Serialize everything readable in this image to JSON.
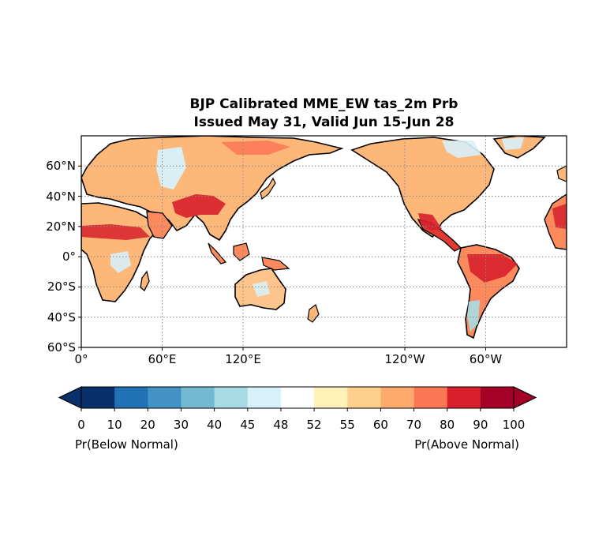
{
  "title": {
    "line1": "BJP Calibrated MME_EW tas_2m Prb",
    "line2": "Issued May 31, Valid Jun 15-Jun 28"
  },
  "map": {
    "projection": "PlateCarree",
    "central_longitude": 180,
    "lon_range": [
      0,
      360
    ],
    "lat_range": [
      -60,
      80
    ],
    "gridlines": "dotted",
    "lat_tick_labels": [
      "60°N",
      "40°N",
      "20°N",
      "0°",
      "20°S",
      "40°S",
      "60°S"
    ],
    "lat_tick_values": [
      60,
      40,
      20,
      0,
      -20,
      -40,
      -60
    ],
    "lon_tick_labels": [
      "0°",
      "60°E",
      "120°E",
      "120°W",
      "60°W"
    ],
    "lon_tick_values": [
      0,
      60,
      120,
      240,
      300
    ],
    "field": "Probability of above/below normal 2m air temperature over land"
  },
  "colorbar": {
    "bounds": [
      0,
      10,
      20,
      30,
      40,
      45,
      48,
      52,
      55,
      60,
      70,
      80,
      90,
      100
    ],
    "tick_labels": [
      "0",
      "10",
      "20",
      "30",
      "40",
      "45",
      "48",
      "52",
      "55",
      "60",
      "70",
      "80",
      "90",
      "100"
    ],
    "colors": [
      "#08306b",
      "#2171b5",
      "#4292c6",
      "#74b9d2",
      "#a8dbe6",
      "#d7f1fa",
      "#ffffff",
      "#fff1b8",
      "#fed08c",
      "#fdab6d",
      "#fc7753",
      "#d7202c",
      "#a50026"
    ],
    "extend": "both",
    "left_label": "Pr(Below Normal)",
    "right_label": "Pr(Above Normal)"
  }
}
